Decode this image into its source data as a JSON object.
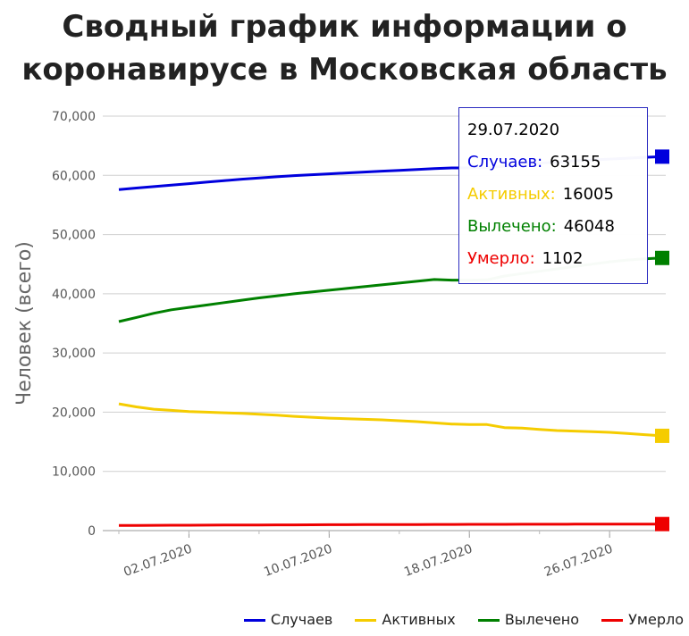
{
  "chart_data": {
    "type": "line",
    "title_bold": "Сводный график",
    "title_rest": "информации о коронавирусе в Московская область",
    "xlabel": "",
    "ylabel": "Человек (всего)",
    "ylim": [
      0,
      70000
    ],
    "yticks": [
      0,
      10000,
      20000,
      30000,
      40000,
      50000,
      60000,
      70000
    ],
    "ytick_labels": [
      "0",
      "10,000",
      "20,000",
      "30,000",
      "40,000",
      "50,000",
      "60,000",
      "70,000"
    ],
    "x_start": "28.06.2020",
    "x_end": "29.07.2020",
    "xtick_labels": [
      "02.07.2020",
      "10.07.2020",
      "18.07.2020",
      "26.07.2020"
    ],
    "grid": true,
    "legend": "bottom-right",
    "x": [
      "28.06.2020",
      "29.06.2020",
      "30.06.2020",
      "01.07.2020",
      "02.07.2020",
      "03.07.2020",
      "04.07.2020",
      "05.07.2020",
      "06.07.2020",
      "07.07.2020",
      "08.07.2020",
      "09.07.2020",
      "10.07.2020",
      "11.07.2020",
      "12.07.2020",
      "13.07.2020",
      "14.07.2020",
      "15.07.2020",
      "16.07.2020",
      "17.07.2020",
      "18.07.2020",
      "19.07.2020",
      "20.07.2020",
      "21.07.2020",
      "22.07.2020",
      "23.07.2020",
      "24.07.2020",
      "25.07.2020",
      "26.07.2020",
      "27.07.2020",
      "28.07.2020",
      "29.07.2020"
    ],
    "series": [
      {
        "name": "Случаев",
        "color": "#0000dd",
        "values": [
          57600,
          57850,
          58100,
          58350,
          58600,
          58850,
          59100,
          59350,
          59550,
          59750,
          59950,
          60100,
          60250,
          60400,
          60550,
          60700,
          60850,
          61000,
          61150,
          61250,
          61250,
          61300,
          61550,
          61800,
          62050,
          62250,
          62450,
          62600,
          62750,
          62900,
          63050,
          63155
        ]
      },
      {
        "name": "Активных",
        "color": "#f5cc00",
        "values": [
          21400,
          20900,
          20500,
          20300,
          20100,
          20000,
          19900,
          19800,
          19650,
          19500,
          19300,
          19150,
          19000,
          18900,
          18800,
          18700,
          18550,
          18400,
          18200,
          18000,
          17900,
          17900,
          17400,
          17300,
          17100,
          16900,
          16800,
          16700,
          16600,
          16400,
          16200,
          16005
        ]
      },
      {
        "name": "Вылечено",
        "color": "#008000",
        "values": [
          35300,
          36000,
          36700,
          37300,
          37700,
          38100,
          38500,
          38900,
          39300,
          39650,
          40000,
          40300,
          40600,
          40900,
          41200,
          41500,
          41800,
          42100,
          42400,
          42300,
          42300,
          42350,
          43000,
          43400,
          43800,
          44200,
          44600,
          45000,
          45400,
          45700,
          45900,
          46048
        ]
      },
      {
        "name": "Умерло",
        "color": "#ee0000",
        "values": [
          870,
          880,
          890,
          900,
          910,
          920,
          930,
          940,
          950,
          960,
          970,
          980,
          990,
          1000,
          1010,
          1015,
          1020,
          1030,
          1040,
          1045,
          1050,
          1055,
          1060,
          1065,
          1070,
          1075,
          1080,
          1085,
          1090,
          1095,
          1098,
          1102
        ]
      }
    ]
  },
  "tooltip": {
    "date": "29.07.2020",
    "rows": [
      {
        "label": "Случаев:",
        "value": "63155",
        "color": "#0000dd"
      },
      {
        "label": "Активных:",
        "value": "16005",
        "color": "#f5cc00"
      },
      {
        "label": "Вылечено:",
        "value": "46048",
        "color": "#008000"
      },
      {
        "label": "Умерло:",
        "value": "1102",
        "color": "#ee0000"
      }
    ]
  }
}
